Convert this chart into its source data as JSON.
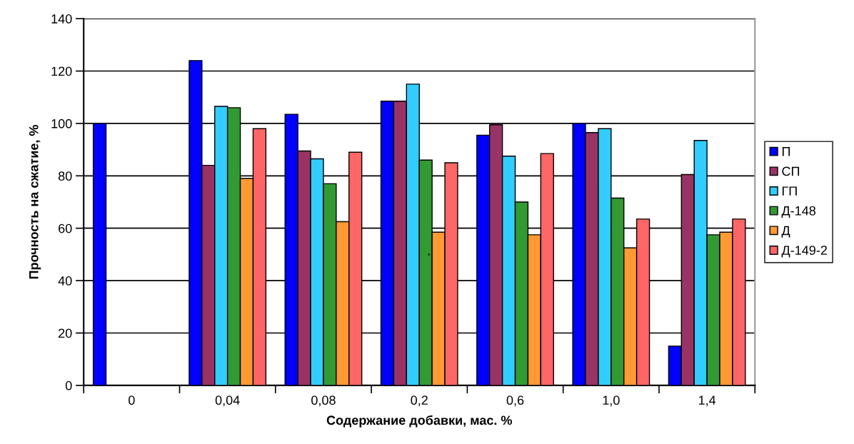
{
  "chart_data": {
    "type": "bar",
    "xlabel": "Содержание добавки, мас. %",
    "ylabel": "Прочность на сжатие, %",
    "categories": [
      "0",
      "0,04",
      "0,08",
      "0,2",
      "0,6",
      "1,0",
      "1,4"
    ],
    "series": [
      {
        "name": "П",
        "color": "#0000ff",
        "values": [
          100,
          124,
          103.5,
          108.5,
          95.5,
          100,
          15
        ]
      },
      {
        "name": "СП",
        "color": "#993366",
        "values": [
          null,
          84,
          89.5,
          108.5,
          99.5,
          96.5,
          80.5
        ]
      },
      {
        "name": "ГП",
        "color": "#33ccff",
        "values": [
          null,
          106.5,
          86.5,
          115,
          87.5,
          98,
          93.5
        ]
      },
      {
        "name": "Д-148",
        "color": "#339933",
        "values": [
          null,
          106,
          77,
          86,
          70,
          71.5,
          57.5
        ]
      },
      {
        "name": "Д",
        "color": "#ff9933",
        "values": [
          null,
          79,
          62.5,
          58.5,
          57.5,
          52.5,
          58.5
        ]
      },
      {
        "name": "Д-149-2",
        "color": "#ff6666",
        "values": [
          null,
          98,
          89,
          85,
          88.5,
          63.5,
          63.5
        ]
      }
    ],
    "ylim": [
      0,
      140
    ],
    "yticks": [
      0,
      20,
      40,
      60,
      80,
      100,
      120,
      140
    ],
    "grid": "y",
    "legend": "right",
    "annotations": [
      {
        "text": ",",
        "x": "0,2",
        "y": 51
      }
    ]
  }
}
